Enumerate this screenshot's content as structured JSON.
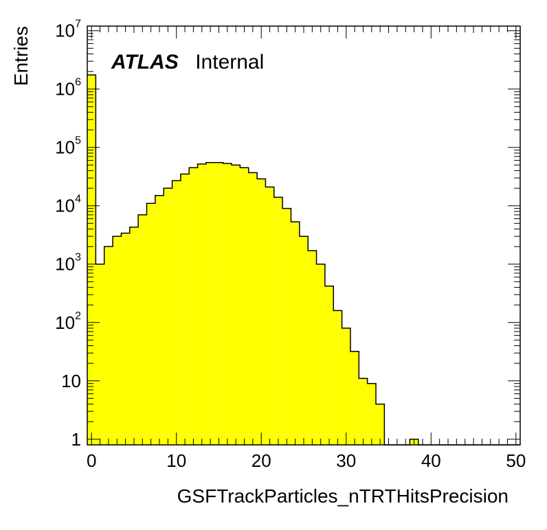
{
  "chart_data": {
    "type": "bar",
    "title": "",
    "xlabel": "GSFTrackParticles_nTRTHitsPrecision",
    "ylabel": "Entries",
    "log_y": true,
    "xlim": [
      -0.5,
      50.5
    ],
    "ylim": [
      0.8,
      12000000
    ],
    "fill_color": "#ffff00",
    "edge_color": "#000000",
    "grid": false,
    "legend": "none",
    "bin_width": 1,
    "x": [
      0,
      1,
      2,
      3,
      4,
      5,
      6,
      7,
      8,
      9,
      10,
      11,
      12,
      13,
      14,
      15,
      16,
      17,
      18,
      19,
      20,
      21,
      22,
      23,
      24,
      25,
      26,
      27,
      28,
      29,
      30,
      31,
      32,
      33,
      34,
      35,
      36,
      37,
      38,
      39,
      40,
      41,
      42,
      43,
      44,
      45,
      46,
      47,
      48,
      49,
      50
    ],
    "values": [
      1750000,
      1000,
      2000,
      3000,
      3400,
      4300,
      7000,
      11000,
      15000,
      20000,
      27000,
      35000,
      45000,
      52000,
      55000,
      55000,
      53000,
      50000,
      45000,
      37000,
      29000,
      21000,
      14000,
      9000,
      5300,
      3000,
      1700,
      1000,
      420,
      160,
      80,
      32,
      11,
      9,
      4,
      0,
      0,
      0,
      1,
      0,
      0,
      0,
      0,
      0,
      0,
      0,
      0,
      0,
      0,
      0,
      0
    ],
    "x_ticks": [
      "0",
      "10",
      "20",
      "30",
      "40",
      "50"
    ],
    "y_ticks": [
      {
        "base": "1",
        "exp": ""
      },
      {
        "base": "10",
        "exp": ""
      },
      {
        "base": "10",
        "exp": "2"
      },
      {
        "base": "10",
        "exp": "3"
      },
      {
        "base": "10",
        "exp": "4"
      },
      {
        "base": "10",
        "exp": "5"
      },
      {
        "base": "10",
        "exp": "6"
      },
      {
        "base": "10",
        "exp": "7"
      }
    ],
    "annotation": {
      "bold": "ATLAS",
      "normal": "Internal"
    }
  }
}
